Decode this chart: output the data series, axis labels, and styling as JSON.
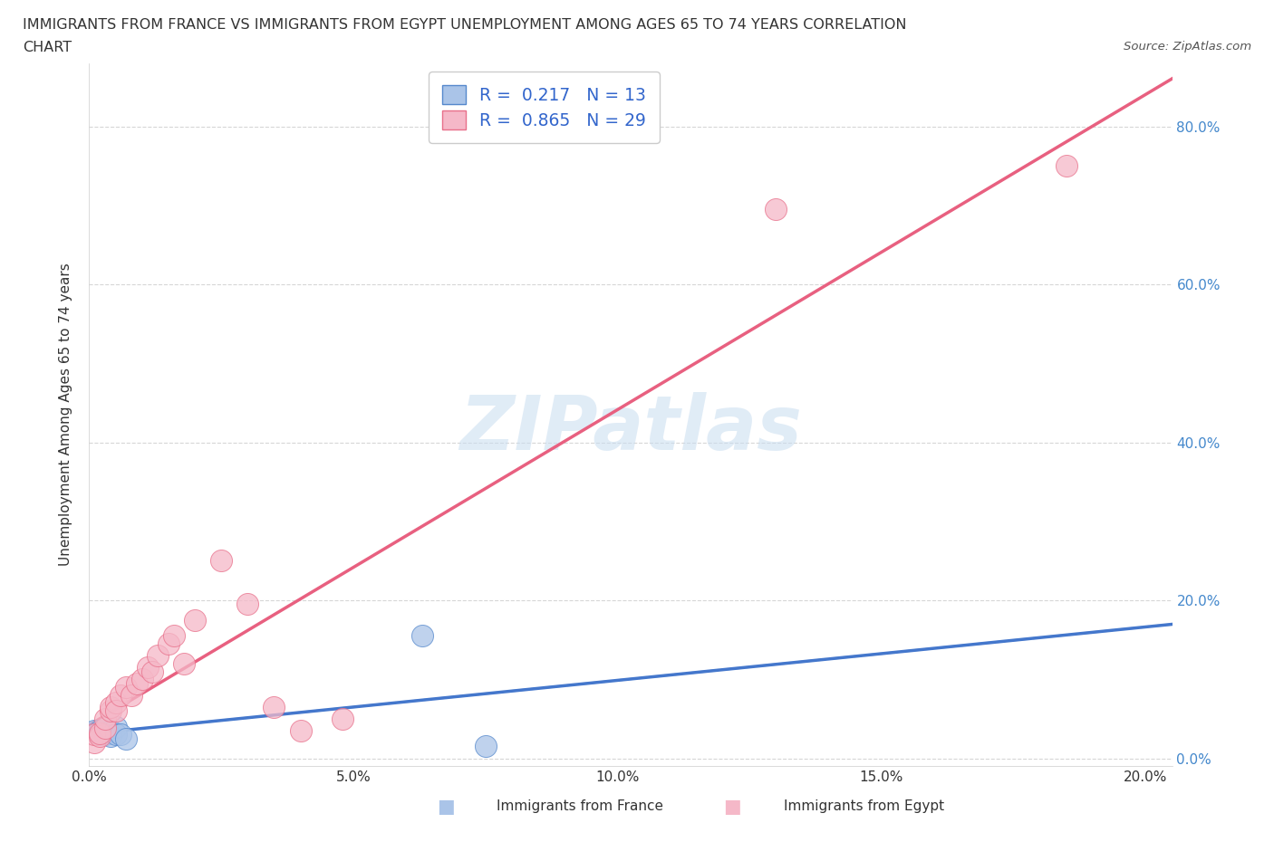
{
  "title_line1": "IMMIGRANTS FROM FRANCE VS IMMIGRANTS FROM EGYPT UNEMPLOYMENT AMONG AGES 65 TO 74 YEARS CORRELATION",
  "title_line2": "CHART",
  "source": "Source: ZipAtlas.com",
  "ylabel": "Unemployment Among Ages 65 to 74 years",
  "xlim": [
    0.0,
    0.205
  ],
  "ylim": [
    -0.01,
    0.88
  ],
  "xticks": [
    0.0,
    0.05,
    0.1,
    0.15,
    0.2
  ],
  "yticks": [
    0.0,
    0.2,
    0.4,
    0.6,
    0.8
  ],
  "xtick_labels": [
    "0.0%",
    "5.0%",
    "10.0%",
    "15.0%",
    "20.0%"
  ],
  "ytick_labels": [
    "0.0%",
    "20.0%",
    "40.0%",
    "60.0%",
    "80.0%"
  ],
  "france_R": 0.217,
  "france_N": 13,
  "egypt_R": 0.865,
  "egypt_N": 29,
  "france_scatter_color": "#aac4e8",
  "france_scatter_edge": "#5588cc",
  "egypt_scatter_color": "#f5b8c8",
  "egypt_scatter_edge": "#e8708a",
  "france_line_color": "#4477cc",
  "egypt_line_color": "#e86080",
  "france_dash_color": "#88aad8",
  "legend_text_color": "#3366cc",
  "watermark": "ZIPatlas",
  "france_x": [
    0.001,
    0.002,
    0.002,
    0.003,
    0.003,
    0.004,
    0.004,
    0.005,
    0.005,
    0.006,
    0.007,
    0.063,
    0.075
  ],
  "france_y": [
    0.035,
    0.035,
    0.03,
    0.038,
    0.03,
    0.035,
    0.028,
    0.04,
    0.03,
    0.03,
    0.025,
    0.155,
    0.015
  ],
  "egypt_x": [
    0.001,
    0.001,
    0.002,
    0.002,
    0.003,
    0.003,
    0.004,
    0.004,
    0.005,
    0.005,
    0.006,
    0.007,
    0.008,
    0.009,
    0.01,
    0.011,
    0.012,
    0.013,
    0.015,
    0.016,
    0.018,
    0.02,
    0.025,
    0.03,
    0.035,
    0.04,
    0.048,
    0.13,
    0.185
  ],
  "egypt_y": [
    0.02,
    0.03,
    0.028,
    0.032,
    0.038,
    0.05,
    0.06,
    0.065,
    0.07,
    0.06,
    0.08,
    0.09,
    0.08,
    0.095,
    0.1,
    0.115,
    0.11,
    0.13,
    0.145,
    0.155,
    0.12,
    0.175,
    0.25,
    0.195,
    0.065,
    0.035,
    0.05,
    0.695,
    0.75
  ],
  "ytick_right": true,
  "ytick_color": "#4488cc"
}
